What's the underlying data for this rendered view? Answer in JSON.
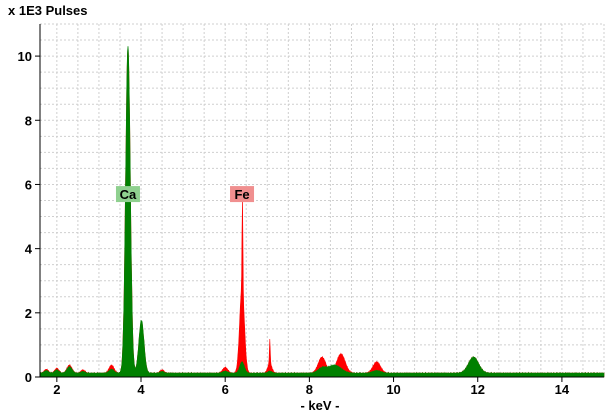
{
  "chart_data": {
    "type": "area",
    "title": "x 1E3 Pulses",
    "xlabel": "- keV -",
    "ylabel": "",
    "xlim": [
      1.6,
      15.0
    ],
    "ylim": [
      0,
      11
    ],
    "xticks": [
      2,
      4,
      6,
      8,
      10,
      12,
      14
    ],
    "yticks": [
      0,
      2,
      4,
      6,
      8,
      10
    ],
    "grid": true,
    "series": [
      {
        "color": "#ff0000",
        "peaks": [
          [
            1.75,
            0.12,
            0.05
          ],
          [
            2.0,
            0.15,
            0.05
          ],
          [
            2.3,
            0.25,
            0.06
          ],
          [
            2.62,
            0.1,
            0.05
          ],
          [
            3.3,
            0.25,
            0.06
          ],
          [
            3.69,
            10.1,
            0.055
          ],
          [
            4.01,
            1.6,
            0.06
          ],
          [
            4.5,
            0.1,
            0.05
          ],
          [
            6.0,
            0.18,
            0.06
          ],
          [
            6.4,
            2.7,
            0.055
          ],
          [
            6.41,
            2.8,
            0.01
          ],
          [
            7.06,
            0.75,
            0.01
          ],
          [
            7.06,
            0.3,
            0.05
          ],
          [
            8.3,
            0.5,
            0.09
          ],
          [
            8.75,
            0.6,
            0.1
          ],
          [
            9.6,
            0.35,
            0.09
          ],
          [
            11.9,
            0.5,
            0.12
          ]
        ],
        "background": 0.12
      },
      {
        "color": "#008000",
        "peaks": [
          [
            1.75,
            0.08,
            0.05
          ],
          [
            2.0,
            0.1,
            0.05
          ],
          [
            2.3,
            0.2,
            0.06
          ],
          [
            2.62,
            0.05,
            0.05
          ],
          [
            3.3,
            0.12,
            0.06
          ],
          [
            3.69,
            10.2,
            0.055
          ],
          [
            4.01,
            1.65,
            0.06
          ],
          [
            4.5,
            0.05,
            0.05
          ],
          [
            6.0,
            0.06,
            0.06
          ],
          [
            6.4,
            0.35,
            0.055
          ],
          [
            7.06,
            0.06,
            0.05
          ],
          [
            8.3,
            0.15,
            0.1
          ],
          [
            8.6,
            0.25,
            0.15
          ],
          [
            9.6,
            0.08,
            0.1
          ],
          [
            11.9,
            0.5,
            0.12
          ]
        ],
        "background": 0.12
      }
    ],
    "annotations": [
      {
        "label": "Ca",
        "x": 3.69,
        "y": 5.7,
        "color": "#8fd08f"
      },
      {
        "label": "Fe",
        "x": 6.4,
        "y": 5.7,
        "color": "#f08f8f"
      }
    ]
  }
}
